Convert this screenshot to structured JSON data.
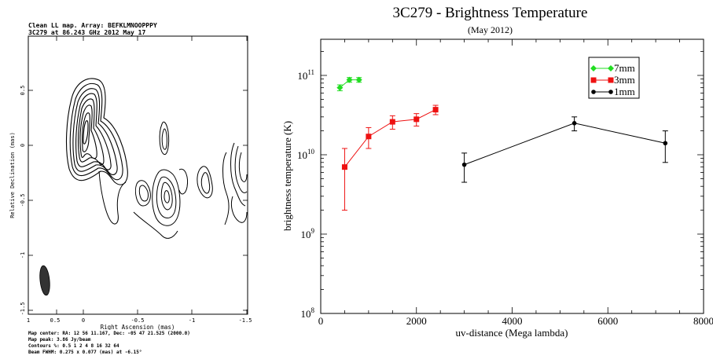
{
  "map": {
    "header_line1": "Clean LL map.  Array:  BEFKLMNOOPPPY",
    "header_line2": "3C279 at 86.243 GHz 2012 May 17",
    "ylabel": "Relative Declination  (mas)",
    "xlabel": "Right Ascension  (mas)",
    "x_ticks": [
      "1",
      "0.5",
      "0",
      "-0.5",
      "-1",
      "-1.5"
    ],
    "y_ticks": [
      "0.5",
      "0",
      "-0.5",
      "-1",
      "-1.5"
    ],
    "footer": [
      "Map center:  RA: 12 56 11.167,  Dec: -05 47 21.525 (2000.0)",
      "Map peak: 3.86 Jy/beam",
      "Contours %: 0.5  1  2  4  8  16  32  64",
      "Beam FWHM: 0.275 x 0.077 (mas) at -6.15°"
    ]
  },
  "chart_data": {
    "type": "scatter",
    "title": "3C279 - Brightness Temperature",
    "subtitle": "(May 2012)",
    "xlabel": "uv-distance (Mega lambda)",
    "ylabel": "brightness temperature (K)",
    "xlim": [
      0,
      8000
    ],
    "ylim": [
      100000000.0,
      200000000000.0
    ],
    "yscale": "log",
    "x_ticks": [
      "0",
      "2000",
      "4000",
      "6000",
      "8000"
    ],
    "y_ticks": [
      {
        "base": "10",
        "exp": "8",
        "value": 100000000.0
      },
      {
        "base": "10",
        "exp": "9",
        "value": 1000000000.0
      },
      {
        "base": "10",
        "exp": "10",
        "value": 10000000000.0
      },
      {
        "base": "10",
        "exp": "11",
        "value": 100000000000.0
      }
    ],
    "legend_position": "top-right",
    "series": [
      {
        "name": "7mm",
        "color": "#22dd22",
        "marker": "diamond",
        "points": [
          {
            "x": 400,
            "y": 70000000000.0,
            "lo": 64000000000.0,
            "hi": 76000000000.0
          },
          {
            "x": 600,
            "y": 88000000000.0,
            "lo": 82000000000.0,
            "hi": 94000000000.0
          },
          {
            "x": 800,
            "y": 88000000000.0,
            "lo": 82000000000.0,
            "hi": 94000000000.0
          }
        ]
      },
      {
        "name": "3mm",
        "color": "#ee1111",
        "marker": "square",
        "points": [
          {
            "x": 500,
            "y": 7000000000.0,
            "lo": 2000000000.0,
            "hi": 12000000000.0
          },
          {
            "x": 1000,
            "y": 17000000000.0,
            "lo": 12000000000.0,
            "hi": 22000000000.0
          },
          {
            "x": 1500,
            "y": 26000000000.0,
            "lo": 21000000000.0,
            "hi": 31000000000.0
          },
          {
            "x": 2000,
            "y": 28000000000.0,
            "lo": 23000000000.0,
            "hi": 33000000000.0
          },
          {
            "x": 2400,
            "y": 37000000000.0,
            "lo": 32000000000.0,
            "hi": 42000000000.0
          }
        ]
      },
      {
        "name": "1mm",
        "color": "#000000",
        "marker": "circle",
        "points": [
          {
            "x": 3000,
            "y": 7500000000.0,
            "lo": 4500000000.0,
            "hi": 10500000000.0
          },
          {
            "x": 5300,
            "y": 25000000000.0,
            "lo": 20000000000.0,
            "hi": 30000000000.0
          },
          {
            "x": 7200,
            "y": 14000000000.0,
            "lo": 8000000000.0,
            "hi": 20000000000.0
          }
        ]
      }
    ]
  }
}
